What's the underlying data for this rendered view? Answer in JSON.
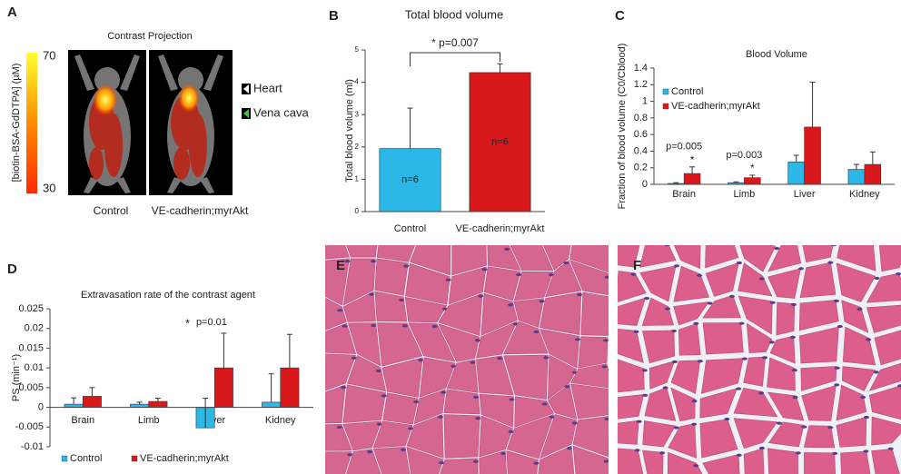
{
  "panel_a": {
    "label": "A",
    "title": "Contrast Projection",
    "colorbar": {
      "label": "[biotin-BSA-GdDTPA]  (µM)",
      "ticks": [
        30,
        70
      ]
    },
    "markers": [
      "Heart",
      "Vena cava"
    ],
    "groups": [
      "Control",
      "VE-cadherin;myrAkt"
    ]
  },
  "panel_e": {
    "label": "E"
  },
  "panel_f": {
    "label": "F"
  },
  "chart_data": [
    {
      "label": "B",
      "type": "bar",
      "title": "Total blood volume",
      "y_label": "Total blood volume (ml)",
      "categories": [
        "Control",
        "VE-cadherin;myrAkt"
      ],
      "values": [
        1.95,
        4.3
      ],
      "errors": [
        1.25,
        0.27
      ],
      "colors": [
        "#2bb8e6",
        "#d7191c"
      ],
      "bar_labels": [
        "n=6",
        "n=6"
      ],
      "annotation": "* p=0.007",
      "ylim": [
        0,
        5
      ],
      "yticks": [
        0,
        1,
        2,
        3,
        4,
        5
      ]
    },
    {
      "label": "C",
      "type": "bar",
      "title": "Blood Volume",
      "y_label": "Fraction of blood volume (C0/Cblood)",
      "categories": [
        "Brain",
        "Limb",
        "Liver",
        "Kidney"
      ],
      "series": [
        {
          "name": "Control",
          "color": "#2bb8e6",
          "values": [
            0.01,
            0.02,
            0.27,
            0.18
          ],
          "errors": [
            0.01,
            0.01,
            0.08,
            0.06
          ]
        },
        {
          "name": "VE-cadherin;myrAkt",
          "color": "#d7191c",
          "values": [
            0.13,
            0.08,
            0.69,
            0.24
          ],
          "errors": [
            0.08,
            0.03,
            0.54,
            0.15
          ]
        }
      ],
      "annotations": [
        {
          "text": "p=0.005",
          "marker": "*"
        },
        {
          "text": "p=0.003",
          "marker": "*"
        },
        null,
        null
      ],
      "ylim": [
        0,
        1.4
      ],
      "yticks": [
        0,
        0.2,
        0.4,
        0.6,
        0.8,
        1,
        1.2,
        1.4
      ],
      "legend": "upper left"
    },
    {
      "label": "D",
      "type": "bar",
      "title": "Extravasation rate of the contrast agent",
      "y_label": "PS (min⁻¹)",
      "categories": [
        "Brain",
        "Limb",
        "Liver",
        "Kidney"
      ],
      "series": [
        {
          "name": "Control",
          "color": "#2bb8e6",
          "values": [
            0.0008,
            0.0008,
            -0.0052,
            0.0013
          ],
          "errors": [
            0.0016,
            0.0005,
            0.0075,
            0.0072
          ]
        },
        {
          "name": "VE-cadherin;myrAkt",
          "color": "#d7191c",
          "values": [
            0.0028,
            0.0015,
            0.01,
            0.01
          ],
          "errors": [
            0.0022,
            0.0008,
            0.0088,
            0.0085
          ]
        }
      ],
      "annotations": [
        null,
        null,
        {
          "text": "p=0.01",
          "marker": "*"
        },
        null
      ],
      "ylim": [
        -0.01,
        0.025
      ],
      "yticks": [
        -0.01,
        -0.005,
        0,
        0.005,
        0.01,
        0.015,
        0.02,
        0.025
      ],
      "legend": "bottom"
    }
  ]
}
